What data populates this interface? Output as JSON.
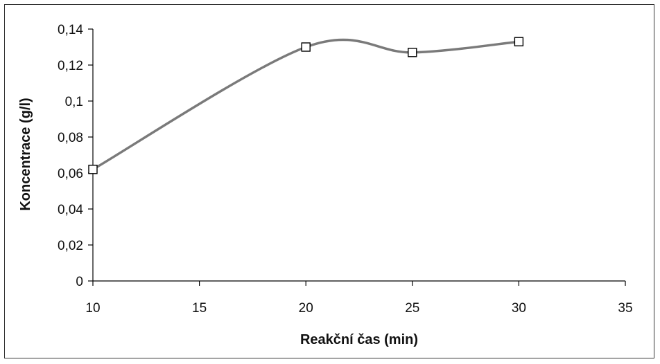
{
  "chart_data": {
    "type": "line",
    "title": "",
    "xlabel": "Reakční čas (min)",
    "ylabel": "Koncentrace (g/l)",
    "xlim": [
      10,
      35
    ],
    "ylim": [
      0,
      0.14
    ],
    "x_ticks": [
      10,
      15,
      20,
      25,
      30,
      35
    ],
    "x_tick_labels": [
      "10",
      "15",
      "20",
      "25",
      "30",
      "35"
    ],
    "y_ticks": [
      0,
      0.02,
      0.04,
      0.06,
      0.08,
      0.1,
      0.12,
      0.14
    ],
    "y_tick_labels": [
      "0",
      "0,02",
      "0,04",
      "0,06",
      "0,08",
      "0,1",
      "0,12",
      "0,14"
    ],
    "grid": false,
    "smooth": true,
    "marker": "square-open",
    "line_color": "#7a7a7a",
    "marker_color": "#000000",
    "series": [
      {
        "x": [
          10,
          20,
          25,
          30
        ],
        "y": [
          0.062,
          0.13,
          0.127,
          0.133
        ]
      }
    ]
  }
}
